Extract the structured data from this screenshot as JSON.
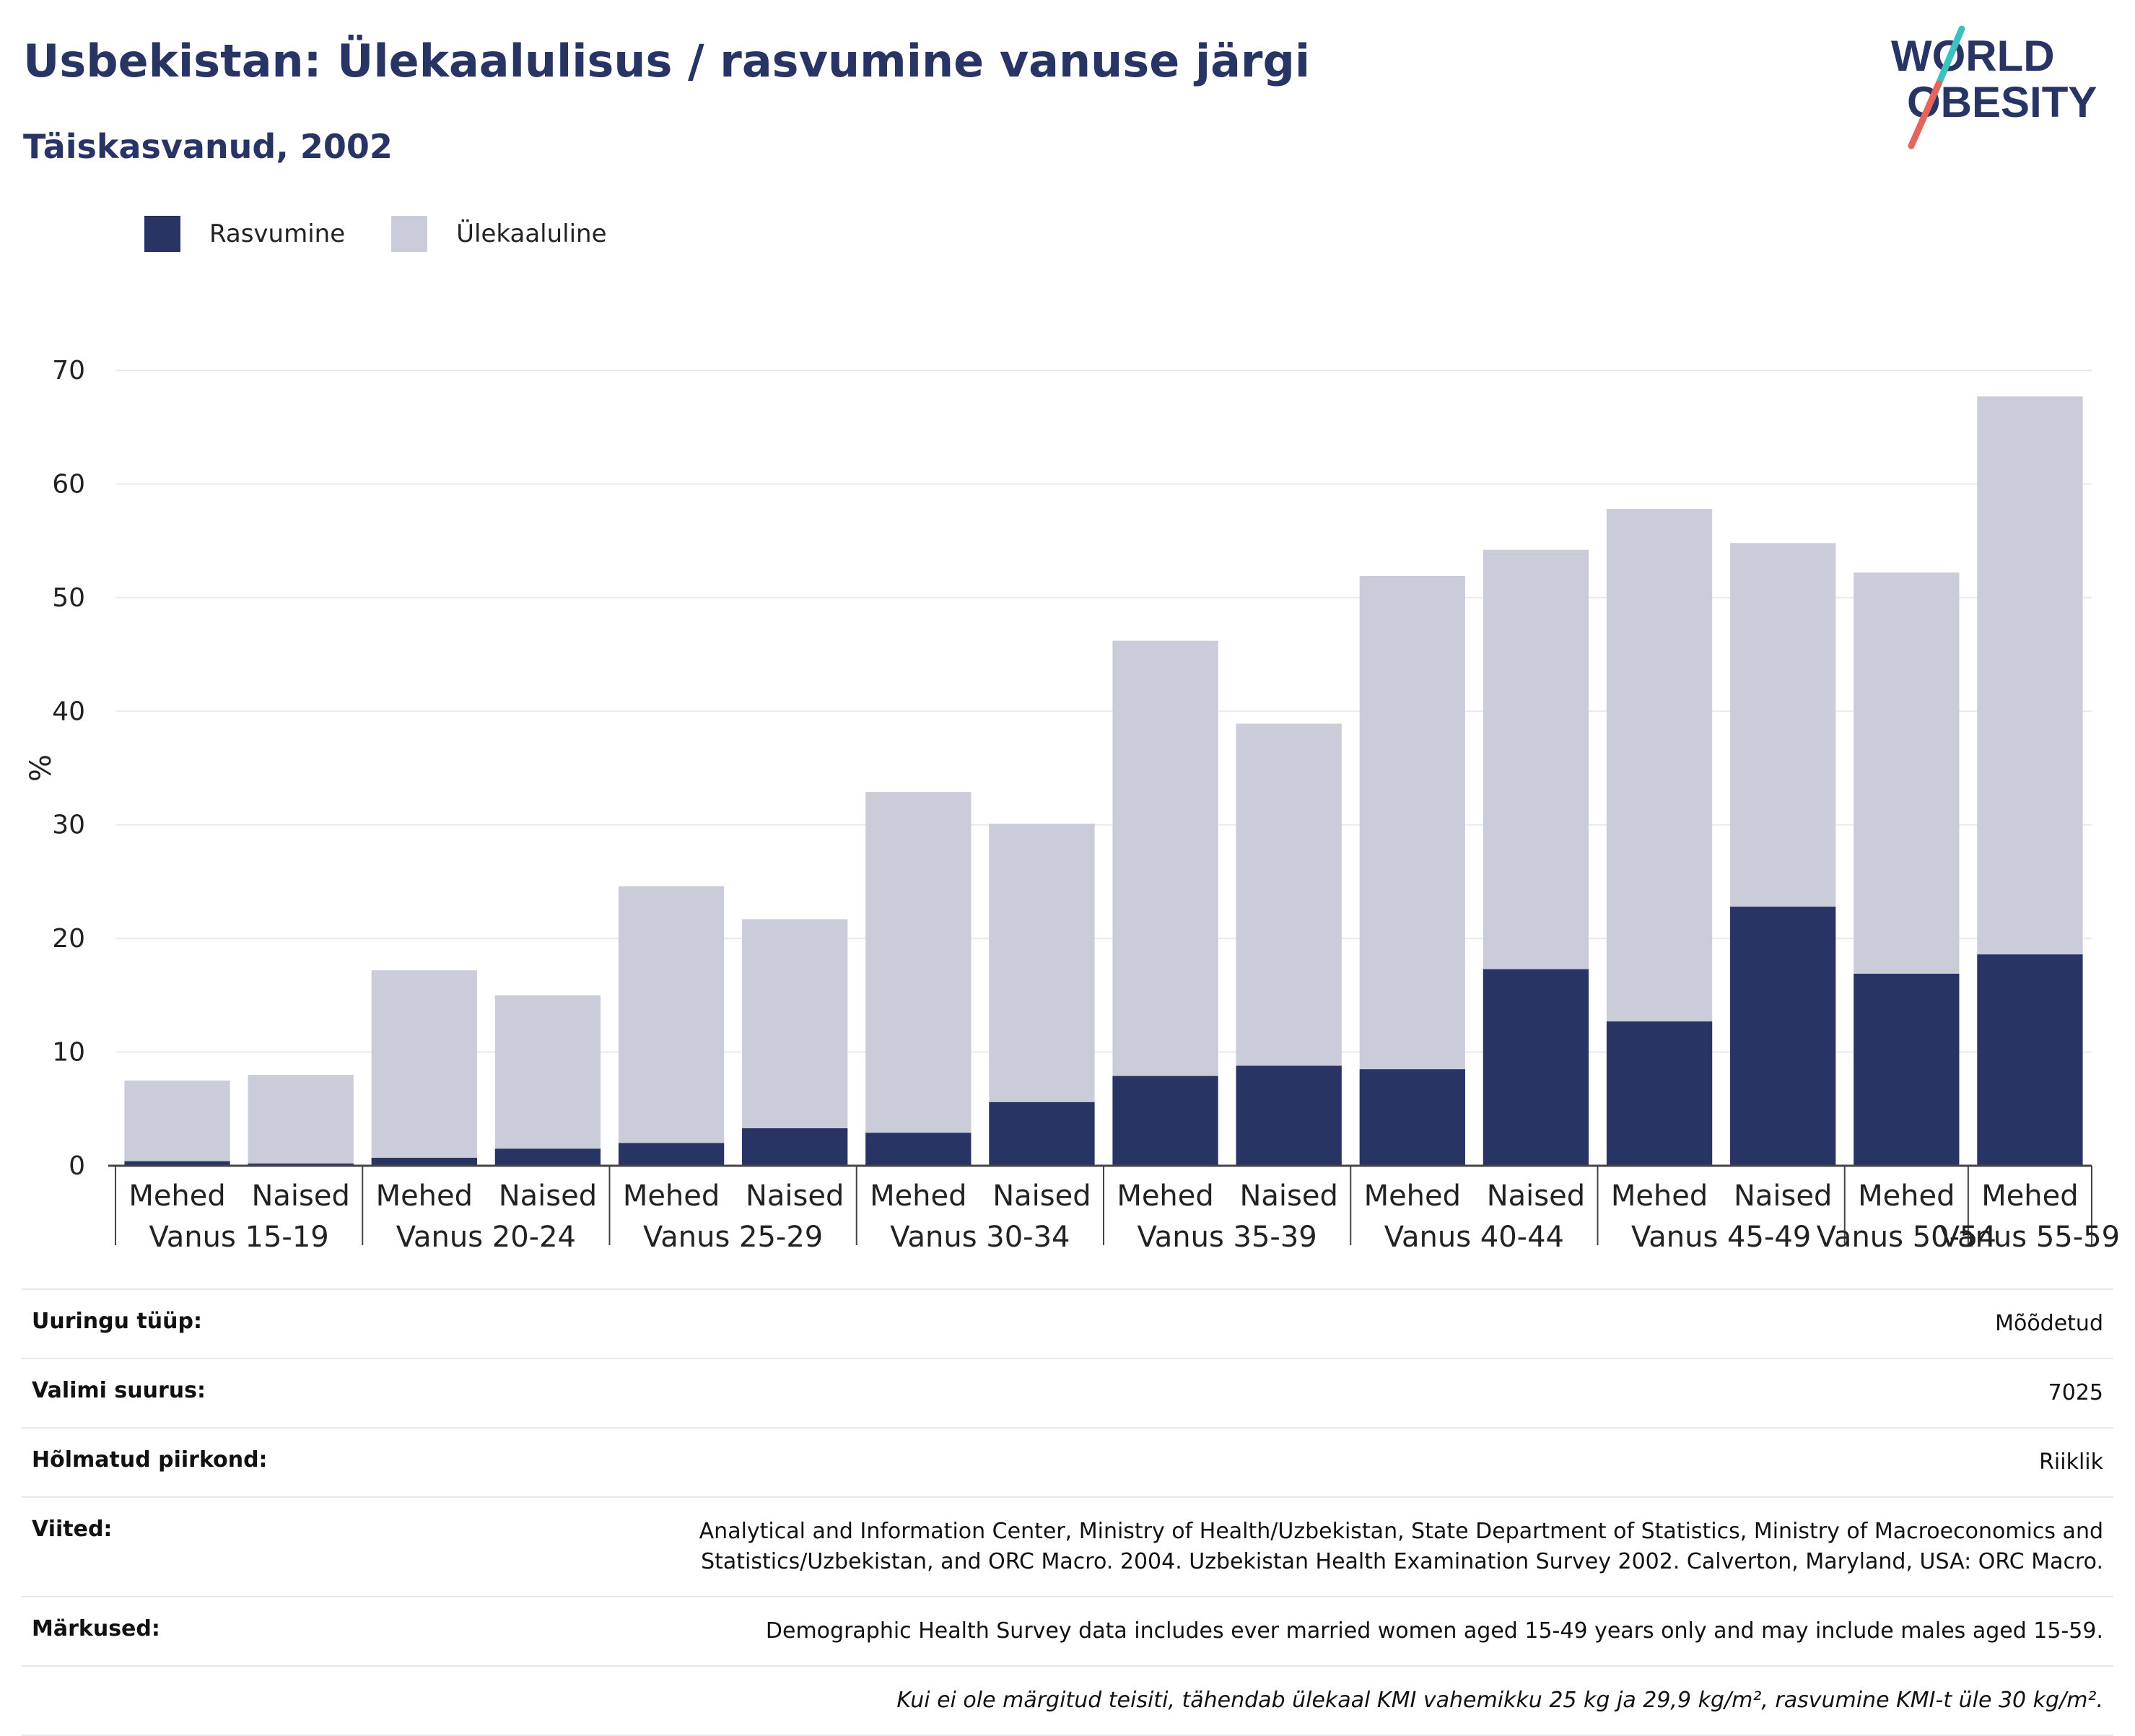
{
  "header": {
    "title": "Usbekistan: Ülekaalulisus / rasvumine vanuse järgi",
    "subtitle": "Täiskasvanud, 2002"
  },
  "logo": {
    "line1": "WORLD",
    "line2": "OBESITY"
  },
  "colors": {
    "obesity": "#283464",
    "overweight": "#cacdd9",
    "text": "#283464",
    "grid": "#e8e9ef",
    "logo_slash_teal": "#3cc0c0",
    "logo_slash_red": "#e4655b"
  },
  "chart_data": {
    "type": "bar",
    "stacked": true,
    "ylabel": "%",
    "ylim": [
      0,
      70
    ],
    "yticks": [
      0,
      10,
      20,
      30,
      40,
      50,
      60,
      70
    ],
    "grid": true,
    "legend_position": "top-left",
    "categories": [
      {
        "group": "Vanus 15-19",
        "sex": "Mehed"
      },
      {
        "group": "Vanus 15-19",
        "sex": "Naised"
      },
      {
        "group": "Vanus 20-24",
        "sex": "Mehed"
      },
      {
        "group": "Vanus 20-24",
        "sex": "Naised"
      },
      {
        "group": "Vanus 25-29",
        "sex": "Mehed"
      },
      {
        "group": "Vanus 25-29",
        "sex": "Naised"
      },
      {
        "group": "Vanus 30-34",
        "sex": "Mehed"
      },
      {
        "group": "Vanus 30-34",
        "sex": "Naised"
      },
      {
        "group": "Vanus 35-39",
        "sex": "Mehed"
      },
      {
        "group": "Vanus 35-39",
        "sex": "Naised"
      },
      {
        "group": "Vanus 40-44",
        "sex": "Mehed"
      },
      {
        "group": "Vanus 40-44",
        "sex": "Naised"
      },
      {
        "group": "Vanus 45-49",
        "sex": "Mehed"
      },
      {
        "group": "Vanus 45-49",
        "sex": "Naised"
      },
      {
        "group": "Vanus 50-54",
        "sex": "Mehed"
      },
      {
        "group": "Vanus 55-59",
        "sex": "Mehed"
      }
    ],
    "series": [
      {
        "name": "Rasvumine",
        "values": [
          0.4,
          0.2,
          0.7,
          1.5,
          2.0,
          3.3,
          2.9,
          5.6,
          7.9,
          8.8,
          8.5,
          17.3,
          12.7,
          22.8,
          16.9,
          18.6
        ]
      },
      {
        "name": "Ülekaaluline",
        "values": [
          7.1,
          7.8,
          16.5,
          13.5,
          22.6,
          18.4,
          30.0,
          24.5,
          38.3,
          30.1,
          43.4,
          36.9,
          45.1,
          32.0,
          35.3,
          49.1
        ]
      }
    ]
  },
  "info_table": [
    {
      "label": "Uuringu tüüp:",
      "value": "Mõõdetud"
    },
    {
      "label": "Valimi suurus:",
      "value": "7025"
    },
    {
      "label": "Hõlmatud piirkond:",
      "value": "Riiklik"
    },
    {
      "label": "Viited:",
      "value": "Analytical and Information Center, Ministry of Health/Uzbekistan, State Department of Statistics, Ministry of Macroeconomics and Statistics/Uzbekistan, and ORC Macro. 2004. Uzbekistan Health Examination Survey 2002. Calverton, Maryland, USA: ORC Macro."
    },
    {
      "label": "Märkused:",
      "value": "Demographic Health Survey data includes ever married women aged 15-49 years only and may include males aged 15-59."
    }
  ],
  "footnote": "Kui ei ole märgitud teisiti, tähendab ülekaal KMI vahemikku 25 kg ja 29,9 kg/m², rasvumine KMI-t üle 30 kg/m²."
}
